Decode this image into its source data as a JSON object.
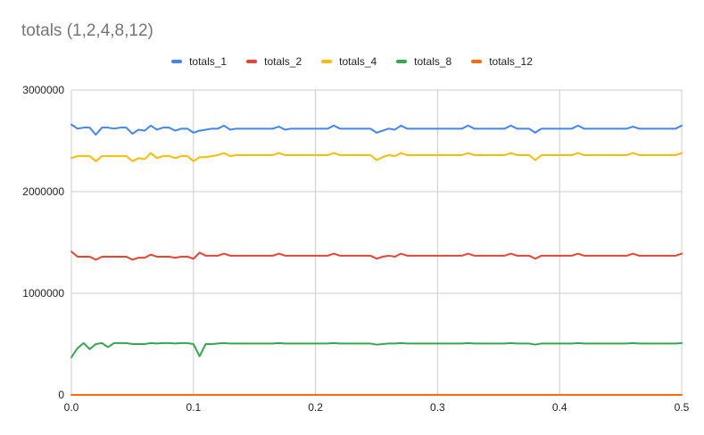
{
  "chart_data": {
    "type": "line",
    "title": "totals (1,2,4,8,12)",
    "xlabel": "",
    "ylabel": "",
    "xlim": [
      0,
      0.5
    ],
    "ylim": [
      0,
      3000000
    ],
    "x_ticks": [
      "0.0",
      "0.1",
      "0.2",
      "0.3",
      "0.4",
      "0.5"
    ],
    "y_ticks": [
      "0",
      "1000000",
      "2000000",
      "3000000"
    ],
    "grid": true,
    "legend_position": "top",
    "x": [
      0.0,
      0.005,
      0.01,
      0.015,
      0.02,
      0.025,
      0.03,
      0.035,
      0.04,
      0.045,
      0.05,
      0.055,
      0.06,
      0.065,
      0.07,
      0.075,
      0.08,
      0.085,
      0.09,
      0.095,
      0.1,
      0.105,
      0.11,
      0.115,
      0.12,
      0.125,
      0.13,
      0.135,
      0.14,
      0.145,
      0.15,
      0.155,
      0.16,
      0.165,
      0.17,
      0.175,
      0.18,
      0.185,
      0.19,
      0.195,
      0.2,
      0.205,
      0.21,
      0.215,
      0.22,
      0.225,
      0.23,
      0.235,
      0.24,
      0.245,
      0.25,
      0.255,
      0.26,
      0.265,
      0.27,
      0.275,
      0.28,
      0.285,
      0.29,
      0.295,
      0.3,
      0.305,
      0.31,
      0.315,
      0.32,
      0.325,
      0.33,
      0.335,
      0.34,
      0.345,
      0.35,
      0.355,
      0.36,
      0.365,
      0.37,
      0.375,
      0.38,
      0.385,
      0.39,
      0.395,
      0.4,
      0.405,
      0.41,
      0.415,
      0.42,
      0.425,
      0.43,
      0.435,
      0.44,
      0.445,
      0.45,
      0.455,
      0.46,
      0.465,
      0.47,
      0.475,
      0.48,
      0.485,
      0.49,
      0.495,
      0.5
    ],
    "series": [
      {
        "name": "totals_1",
        "color": "#4285F4",
        "values": [
          2660000,
          2620000,
          2630000,
          2630000,
          2560000,
          2630000,
          2630000,
          2620000,
          2630000,
          2630000,
          2570000,
          2610000,
          2600000,
          2650000,
          2610000,
          2630000,
          2630000,
          2600000,
          2620000,
          2620000,
          2580000,
          2600000,
          2610000,
          2620000,
          2620000,
          2650000,
          2610000,
          2620000,
          2620000,
          2620000,
          2620000,
          2620000,
          2620000,
          2620000,
          2640000,
          2610000,
          2620000,
          2620000,
          2620000,
          2620000,
          2620000,
          2620000,
          2620000,
          2650000,
          2620000,
          2620000,
          2620000,
          2620000,
          2620000,
          2620000,
          2580000,
          2600000,
          2620000,
          2610000,
          2650000,
          2620000,
          2620000,
          2620000,
          2620000,
          2620000,
          2620000,
          2620000,
          2620000,
          2620000,
          2620000,
          2650000,
          2620000,
          2620000,
          2620000,
          2620000,
          2620000,
          2620000,
          2650000,
          2620000,
          2620000,
          2620000,
          2580000,
          2620000,
          2620000,
          2620000,
          2620000,
          2620000,
          2620000,
          2650000,
          2620000,
          2620000,
          2620000,
          2620000,
          2620000,
          2620000,
          2620000,
          2620000,
          2640000,
          2620000,
          2620000,
          2620000,
          2620000,
          2620000,
          2620000,
          2620000,
          2650000
        ]
      },
      {
        "name": "totals_2",
        "color": "#EA4335",
        "values": [
          1410000,
          1360000,
          1360000,
          1360000,
          1330000,
          1360000,
          1360000,
          1360000,
          1360000,
          1360000,
          1330000,
          1350000,
          1350000,
          1380000,
          1360000,
          1360000,
          1360000,
          1350000,
          1360000,
          1360000,
          1340000,
          1400000,
          1370000,
          1370000,
          1370000,
          1390000,
          1370000,
          1370000,
          1370000,
          1370000,
          1370000,
          1370000,
          1370000,
          1370000,
          1390000,
          1370000,
          1370000,
          1370000,
          1370000,
          1370000,
          1370000,
          1370000,
          1370000,
          1390000,
          1370000,
          1370000,
          1370000,
          1370000,
          1370000,
          1370000,
          1340000,
          1360000,
          1370000,
          1360000,
          1390000,
          1370000,
          1370000,
          1370000,
          1370000,
          1370000,
          1370000,
          1370000,
          1370000,
          1370000,
          1370000,
          1390000,
          1370000,
          1370000,
          1370000,
          1370000,
          1370000,
          1370000,
          1390000,
          1370000,
          1370000,
          1370000,
          1340000,
          1370000,
          1370000,
          1370000,
          1370000,
          1370000,
          1370000,
          1390000,
          1370000,
          1370000,
          1370000,
          1370000,
          1370000,
          1370000,
          1370000,
          1370000,
          1390000,
          1370000,
          1370000,
          1370000,
          1370000,
          1370000,
          1370000,
          1370000,
          1390000
        ]
      },
      {
        "name": "totals_4",
        "color": "#FBBC04",
        "values": [
          2330000,
          2350000,
          2350000,
          2350000,
          2300000,
          2350000,
          2350000,
          2350000,
          2350000,
          2350000,
          2300000,
          2330000,
          2320000,
          2380000,
          2330000,
          2350000,
          2350000,
          2330000,
          2350000,
          2350000,
          2300000,
          2340000,
          2340000,
          2350000,
          2360000,
          2380000,
          2350000,
          2360000,
          2360000,
          2360000,
          2360000,
          2360000,
          2360000,
          2360000,
          2380000,
          2360000,
          2360000,
          2360000,
          2360000,
          2360000,
          2360000,
          2360000,
          2360000,
          2380000,
          2360000,
          2360000,
          2360000,
          2360000,
          2360000,
          2360000,
          2310000,
          2340000,
          2360000,
          2350000,
          2380000,
          2360000,
          2360000,
          2360000,
          2360000,
          2360000,
          2360000,
          2360000,
          2360000,
          2360000,
          2360000,
          2380000,
          2360000,
          2360000,
          2360000,
          2360000,
          2360000,
          2360000,
          2380000,
          2360000,
          2360000,
          2360000,
          2310000,
          2360000,
          2360000,
          2360000,
          2360000,
          2360000,
          2360000,
          2380000,
          2360000,
          2360000,
          2360000,
          2360000,
          2360000,
          2360000,
          2360000,
          2360000,
          2380000,
          2360000,
          2360000,
          2360000,
          2360000,
          2360000,
          2360000,
          2360000,
          2380000
        ]
      },
      {
        "name": "totals_8",
        "color": "#34A853",
        "values": [
          370000,
          460000,
          510000,
          450000,
          500000,
          510000,
          470000,
          510000,
          510000,
          510000,
          500000,
          500000,
          500000,
          510000,
          505000,
          510000,
          510000,
          505000,
          510000,
          510000,
          500000,
          380000,
          500000,
          500000,
          505000,
          510000,
          505000,
          505000,
          505000,
          505000,
          505000,
          505000,
          505000,
          505000,
          510000,
          505000,
          505000,
          505000,
          505000,
          505000,
          505000,
          505000,
          505000,
          510000,
          505000,
          505000,
          505000,
          505000,
          505000,
          505000,
          495000,
          500000,
          505000,
          505000,
          510000,
          505000,
          505000,
          505000,
          505000,
          505000,
          505000,
          505000,
          505000,
          505000,
          505000,
          510000,
          505000,
          505000,
          505000,
          505000,
          505000,
          505000,
          510000,
          505000,
          505000,
          505000,
          495000,
          505000,
          505000,
          505000,
          505000,
          505000,
          505000,
          510000,
          505000,
          505000,
          505000,
          505000,
          505000,
          505000,
          505000,
          505000,
          510000,
          505000,
          505000,
          505000,
          505000,
          505000,
          505000,
          505000,
          510000
        ]
      },
      {
        "name": "totals_12",
        "color": "#FF6D01",
        "values": [
          0,
          0,
          0,
          0,
          0,
          0,
          0,
          0,
          0,
          0,
          0,
          0,
          0,
          0,
          0,
          0,
          0,
          0,
          0,
          0,
          0,
          0,
          0,
          0,
          0,
          0,
          0,
          0,
          0,
          0,
          0,
          0,
          0,
          0,
          0,
          0,
          0,
          0,
          0,
          0,
          0,
          0,
          0,
          0,
          0,
          0,
          0,
          0,
          0,
          0,
          0,
          0,
          0,
          0,
          0,
          0,
          0,
          0,
          0,
          0,
          0,
          0,
          0,
          0,
          0,
          0,
          0,
          0,
          0,
          0,
          0,
          0,
          0,
          0,
          0,
          0,
          0,
          0,
          0,
          0,
          0,
          0,
          0,
          0,
          0,
          0,
          0,
          0,
          0,
          0,
          0,
          0,
          0,
          0,
          0,
          0,
          0,
          0,
          0,
          0,
          0
        ]
      }
    ]
  }
}
